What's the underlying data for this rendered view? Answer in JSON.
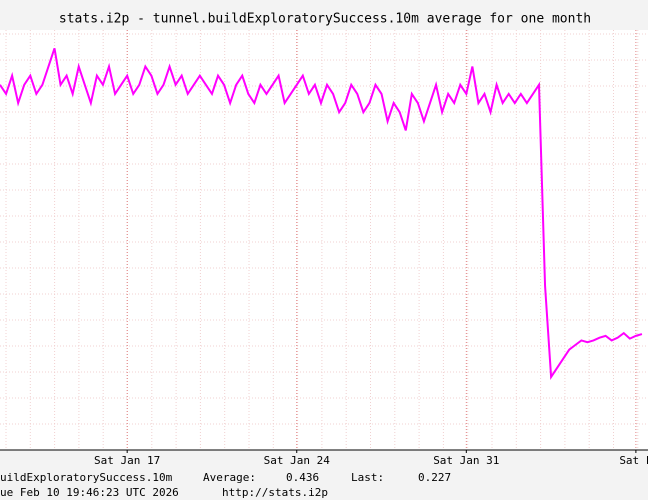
{
  "chart_data": {
    "type": "line",
    "title": "stats.i2p - tunnel.buildExploratorySuccess.10m average for one month",
    "series": [
      {
        "name": "uildExploratorySuccess.10m",
        "color": "#ff00ff",
        "values": [
          0.5,
          0.49,
          0.51,
          0.48,
          0.5,
          0.51,
          0.49,
          0.5,
          0.52,
          0.54,
          0.5,
          0.51,
          0.49,
          0.52,
          0.5,
          0.48,
          0.51,
          0.5,
          0.52,
          0.49,
          0.5,
          0.51,
          0.49,
          0.5,
          0.52,
          0.51,
          0.49,
          0.5,
          0.52,
          0.5,
          0.51,
          0.49,
          0.5,
          0.51,
          0.5,
          0.49,
          0.51,
          0.5,
          0.48,
          0.5,
          0.51,
          0.49,
          0.48,
          0.5,
          0.49,
          0.5,
          0.51,
          0.48,
          0.49,
          0.5,
          0.51,
          0.49,
          0.5,
          0.48,
          0.5,
          0.49,
          0.47,
          0.48,
          0.5,
          0.49,
          0.47,
          0.48,
          0.5,
          0.49,
          0.46,
          0.48,
          0.47,
          0.45,
          0.49,
          0.48,
          0.46,
          0.48,
          0.5,
          0.47,
          0.49,
          0.48,
          0.5,
          0.49,
          0.52,
          0.48,
          0.49,
          0.47,
          0.5,
          0.48,
          0.49,
          0.48,
          0.49,
          0.48,
          0.49,
          0.5,
          0.28,
          0.18,
          0.19,
          0.2,
          0.21,
          0.215,
          0.22,
          0.218,
          0.22,
          0.223,
          0.225,
          0.22,
          0.223,
          0.228,
          0.222,
          0.225,
          0.227
        ]
      }
    ],
    "xlim": [
      0,
      107
    ],
    "xticks": [
      {
        "value": 21,
        "label": "Sat Jan 17"
      },
      {
        "value": 49,
        "label": "Sat Jan 24"
      },
      {
        "value": 77,
        "label": "Sat Jan 31"
      },
      {
        "value": 105,
        "label": "Sat F"
      }
    ],
    "ylim": [
      0.1,
      0.56
    ],
    "grid": true,
    "legend": {
      "average_label": "Average:",
      "average": 0.436,
      "last_label": "Last:",
      "last": 0.227
    },
    "footer": {
      "timestamp": "ue Feb 10 19:46:23 UTC 2026",
      "url": "http://stats.i2p"
    }
  }
}
